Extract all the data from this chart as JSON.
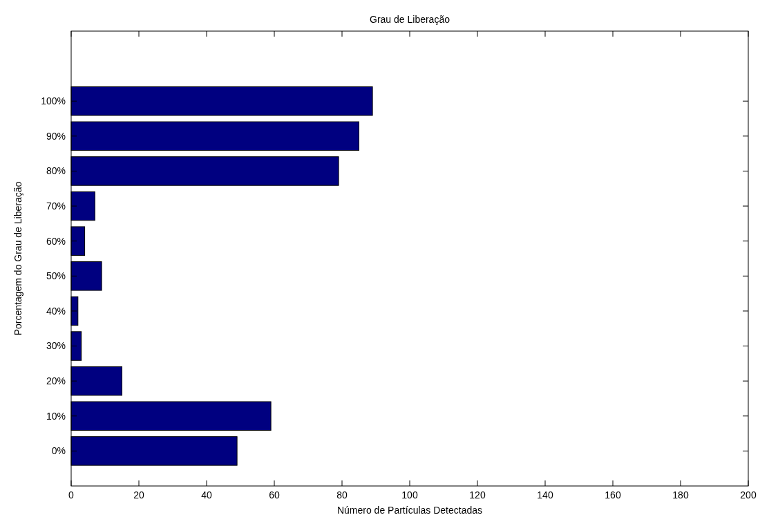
{
  "chart_data": {
    "type": "bar",
    "orientation": "horizontal",
    "title": "Grau de Liberação",
    "xlabel": "Número de Partículas Detectadas",
    "ylabel": "Porcentagem do Grau de Liberação",
    "categories": [
      "100%",
      "90%",
      "80%",
      "70%",
      "60%",
      "50%",
      "40%",
      "30%",
      "20%",
      "10%",
      "0%"
    ],
    "values": [
      89,
      85,
      79,
      7,
      4,
      9,
      2,
      3,
      15,
      59,
      49
    ],
    "color": "#000080",
    "xlim": [
      0,
      200
    ],
    "xticks": [
      0,
      20,
      40,
      60,
      80,
      100,
      120,
      140,
      160,
      180,
      200
    ],
    "grid": false
  }
}
